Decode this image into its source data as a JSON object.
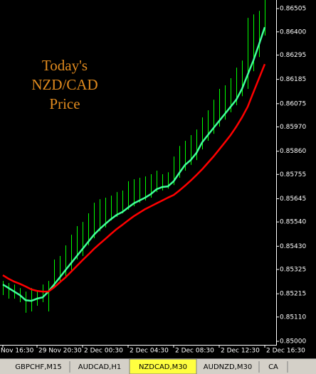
{
  "chart_data": {
    "type": "line",
    "annotation": [
      "Today's",
      "NZD/CAD",
      "Price"
    ],
    "categories": [
      "Nov 16:30",
      null,
      null,
      null,
      null,
      null,
      "29 Nov 20:30",
      null,
      null,
      null,
      null,
      null,
      null,
      null,
      "2 Dec 00:30",
      null,
      null,
      null,
      null,
      null,
      null,
      null,
      "2 Dec 04:30",
      null,
      null,
      null,
      null,
      null,
      null,
      null,
      "2 Dec 08:30",
      null,
      null,
      null,
      null,
      null,
      null,
      null,
      "2 Dec 12:30",
      null,
      null,
      null,
      null,
      null,
      null,
      null,
      "2 Dec 16:30"
    ],
    "price_bars": {
      "color": "#00ff00",
      "high": [
        0.85273,
        0.85264,
        0.85257,
        0.85241,
        0.85225,
        0.85241,
        0.85225,
        0.85257,
        0.85273,
        0.8537,
        0.85386,
        0.85434,
        0.85482,
        0.85521,
        0.8554,
        0.85579,
        0.85627,
        0.85643,
        0.8565,
        0.85659,
        0.85675,
        0.85682,
        0.85724,
        0.85733,
        0.8574,
        0.85746,
        0.85756,
        0.85772,
        0.85756,
        0.85765,
        0.85836,
        0.85884,
        0.85907,
        0.85933,
        0.85958,
        0.86013,
        0.86045,
        0.86093,
        0.86142,
        0.86158,
        0.8619,
        0.86238,
        0.8627,
        0.86463,
        0.86479,
        0.86495,
        0.86544
      ],
      "low": [
        0.85209,
        0.85193,
        0.85193,
        0.85177,
        0.85129,
        0.85135,
        0.85161,
        0.85177,
        0.85135,
        0.85241,
        0.85273,
        0.85289,
        0.85322,
        0.8537,
        0.85386,
        0.85434,
        0.85466,
        0.85498,
        0.85515,
        0.85547,
        0.85563,
        0.85579,
        0.85595,
        0.85611,
        0.85627,
        0.85637,
        0.8565,
        0.85675,
        0.85682,
        0.85691,
        0.85707,
        0.8574,
        0.85772,
        0.85798,
        0.8582,
        0.85868,
        0.85907,
        0.85939,
        0.85971,
        0.86003,
        0.86036,
        0.86068,
        0.86109,
        0.86142,
        0.86222,
        0.86286,
        0.86383
      ]
    },
    "series": [
      {
        "color": "#40ff9a",
        "values": [
          0.85257,
          0.85241,
          0.85225,
          0.85209,
          0.85186,
          0.85183,
          0.85193,
          0.85199,
          0.85225,
          0.85257,
          0.85289,
          0.85322,
          0.85354,
          0.85386,
          0.85418,
          0.8545,
          0.85482,
          0.85508,
          0.85531,
          0.85553,
          0.85572,
          0.85585,
          0.85605,
          0.85624,
          0.85637,
          0.8565,
          0.85666,
          0.85688,
          0.85698,
          0.85701,
          0.85724,
          0.85762,
          0.85798,
          0.8582,
          0.85852,
          0.859,
          0.85933,
          0.85965,
          0.85997,
          0.86029,
          0.86061,
          0.86093,
          0.86142,
          0.86206,
          0.8627,
          0.86344,
          0.86421
        ]
      },
      {
        "color": "#ff0000",
        "values": [
          0.85299,
          0.85283,
          0.8527,
          0.8526,
          0.85248,
          0.85235,
          0.85228,
          0.85225,
          0.85225,
          0.85244,
          0.85267,
          0.85289,
          0.85315,
          0.85341,
          0.85367,
          0.85392,
          0.85418,
          0.85441,
          0.85463,
          0.85486,
          0.85508,
          0.85527,
          0.85547,
          0.85566,
          0.85582,
          0.85598,
          0.85611,
          0.85624,
          0.85637,
          0.8565,
          0.85662,
          0.85682,
          0.85704,
          0.85727,
          0.85752,
          0.85778,
          0.85807,
          0.85836,
          0.85868,
          0.859,
          0.85933,
          0.85971,
          0.86013,
          0.86061,
          0.86126,
          0.8619,
          0.86254
        ]
      }
    ],
    "ylim": [
      0.84984,
      0.86544
    ],
    "yticks": [
      0.86505,
      {
        "value": 0.864,
        "label": "0.86400"
      },
      0.86295,
      0.86185,
      0.86075,
      {
        "value": 0.8597,
        "label": "0.85970"
      },
      {
        "value": 0.8586,
        "label": "0.85860"
      },
      0.85755,
      0.85645,
      {
        "value": 0.8554,
        "label": "0.85540"
      },
      {
        "value": 0.8543,
        "label": "0.85430"
      },
      0.85325,
      0.85215,
      {
        "value": 0.8511,
        "label": "0.85110"
      },
      {
        "value": 0.85,
        "label": "0.85000"
      }
    ]
  },
  "tabs": [
    "GBPCHF,M15",
    "AUDCAD,H1",
    "NZDCAD,M30",
    "AUDNZD,M30",
    "CA"
  ],
  "active_tab": 2
}
